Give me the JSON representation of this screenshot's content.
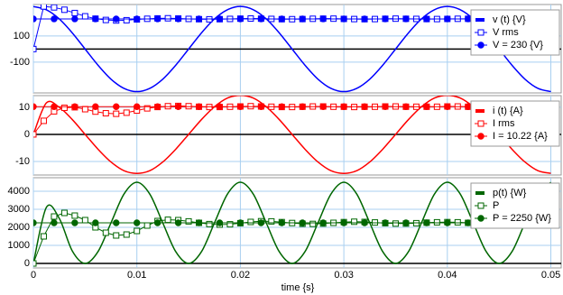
{
  "chart_data": [
    {
      "type": "line",
      "legend": "upper right",
      "grid": true,
      "ylim": [
        -335,
        340
      ],
      "yticks": [
        -100,
        100
      ],
      "series": [
        {
          "name": "v (t) {V}",
          "color": "#0000ff",
          "x": [
            0,
            0.00125,
            0.0025,
            0.00375,
            0.005,
            0.00625,
            0.0075,
            0.00875,
            0.01,
            0.01125,
            0.0125,
            0.01375,
            0.015,
            0.01625,
            0.0175,
            0.01875,
            0.02,
            0.02125,
            0.0225,
            0.02375,
            0.025,
            0.02625,
            0.0275,
            0.02875,
            0.03,
            0.03125,
            0.0325,
            0.03375,
            0.035,
            0.03625,
            0.0375,
            0.03875,
            0.04,
            0.04125,
            0.0425,
            0.04375,
            0.045,
            0.04625,
            0.0475,
            0.04875,
            0.05
          ],
          "values": [
            325,
            300,
            230,
            124,
            0,
            -124,
            -230,
            -300,
            -325,
            -300,
            -230,
            -124,
            0,
            124,
            230,
            300,
            325,
            300,
            230,
            124,
            0,
            -124,
            -230,
            -300,
            -325,
            -300,
            -230,
            -124,
            0,
            124,
            230,
            300,
            325,
            300,
            230,
            124,
            0,
            -124,
            -230,
            -300,
            -325
          ]
        },
        {
          "name": "V rms",
          "color": "#0000ff",
          "marker": "open-square",
          "x": [
            0,
            0.001,
            0.002,
            0.003,
            0.004,
            0.005,
            0.006,
            0.007,
            0.008,
            0.009,
            0.01,
            0.011,
            0.012,
            0.013,
            0.014,
            0.015,
            0.016,
            0.017,
            0.018,
            0.019,
            0.02,
            0.021,
            0.022,
            0.023,
            0.024,
            0.025,
            0.026,
            0.027,
            0.028,
            0.029,
            0.03,
            0.031,
            0.032,
            0.033,
            0.034,
            0.035,
            0.036,
            0.037,
            0.038,
            0.039,
            0.04,
            0.041,
            0.042,
            0.043,
            0.044,
            0.045,
            0.046,
            0.047,
            0.048,
            0.049,
            0.05
          ],
          "values": [
            0,
            325,
            318,
            300,
            275,
            250,
            232,
            222,
            218,
            220,
            226,
            231,
            234,
            235,
            233,
            230,
            228,
            227,
            228,
            230,
            232,
            233,
            232,
            230,
            228,
            228,
            229,
            231,
            232,
            232,
            230,
            229,
            228,
            229,
            231,
            232,
            231,
            230,
            229,
            229,
            230,
            231,
            231,
            230,
            229,
            229,
            230,
            231,
            231,
            230,
            230
          ]
        },
        {
          "name": "V = 230 {V}",
          "color": "#0000ff",
          "marker": "filled-circle",
          "x": [
            0,
            0.002,
            0.004,
            0.006,
            0.008,
            0.01,
            0.012,
            0.014,
            0.016,
            0.018,
            0.02,
            0.022,
            0.024,
            0.026,
            0.028,
            0.03,
            0.032,
            0.034,
            0.036,
            0.038,
            0.04,
            0.042,
            0.044,
            0.046,
            0.048,
            0.05
          ],
          "values": [
            230,
            230,
            230,
            230,
            230,
            230,
            230,
            230,
            230,
            230,
            230,
            230,
            230,
            230,
            230,
            230,
            230,
            230,
            230,
            230,
            230,
            230,
            230,
            230,
            230,
            230
          ]
        }
      ]
    },
    {
      "type": "line",
      "legend": "upper right",
      "grid": true,
      "ylim": [
        -15,
        14.3
      ],
      "yticks": [
        -10,
        0,
        10
      ],
      "series": [
        {
          "name": "i (t) {A}",
          "color": "#ff0000",
          "x": [
            0,
            0.00125,
            0.0025,
            0.00375,
            0.005,
            0.00625,
            0.0075,
            0.00875,
            0.01,
            0.01125,
            0.0125,
            0.01375,
            0.015,
            0.01625,
            0.0175,
            0.01875,
            0.02,
            0.02125,
            0.0225,
            0.02375,
            0.025,
            0.02625,
            0.0275,
            0.02875,
            0.03,
            0.03125,
            0.0325,
            0.03375,
            0.035,
            0.03625,
            0.0375,
            0.03875,
            0.04,
            0.04125,
            0.0425,
            0.04375,
            0.045,
            0.04625,
            0.0475,
            0.04875,
            0.05
          ],
          "values": [
            0,
            11.6,
            10.0,
            5.5,
            0,
            -5.5,
            -10.2,
            -13.4,
            -14.4,
            -13.4,
            -10.2,
            -5.5,
            0,
            5.5,
            10.2,
            13.4,
            14.4,
            13.4,
            10.2,
            5.5,
            0,
            -5.5,
            -10.2,
            -13.4,
            -14.4,
            -13.4,
            -10.2,
            -5.5,
            0,
            5.5,
            10.2,
            13.4,
            14.4,
            13.4,
            10.2,
            5.5,
            0,
            -5.5,
            -10.2,
            -13.4,
            -14.4
          ]
        },
        {
          "name": "I rms",
          "color": "#ff0000",
          "marker": "open-square",
          "x": [
            0,
            0.001,
            0.002,
            0.003,
            0.004,
            0.005,
            0.006,
            0.007,
            0.008,
            0.009,
            0.01,
            0.011,
            0.012,
            0.013,
            0.014,
            0.015,
            0.016,
            0.017,
            0.018,
            0.019,
            0.02,
            0.021,
            0.022,
            0.023,
            0.024,
            0.025,
            0.026,
            0.027,
            0.028,
            0.029,
            0.03,
            0.031,
            0.032,
            0.033,
            0.034,
            0.035,
            0.036,
            0.037,
            0.038,
            0.039,
            0.04,
            0.041,
            0.042,
            0.043,
            0.044,
            0.045,
            0.046,
            0.047,
            0.048,
            0.049,
            0.05
          ],
          "values": [
            0,
            5.0,
            8.5,
            9.8,
            10.0,
            9.3,
            8.4,
            7.8,
            7.6,
            8.0,
            8.8,
            9.6,
            10.1,
            10.4,
            10.5,
            10.4,
            10.2,
            10.1,
            10.1,
            10.2,
            10.3,
            10.4,
            10.3,
            10.2,
            10.1,
            10.1,
            10.2,
            10.3,
            10.3,
            10.2,
            10.2,
            10.1,
            10.2,
            10.2,
            10.3,
            10.3,
            10.2,
            10.2,
            10.2,
            10.2,
            10.3,
            10.3,
            10.2,
            10.2,
            10.2,
            10.2,
            10.2,
            10.3,
            10.2,
            10.2,
            10.2
          ]
        },
        {
          "name": "I = 10.22 {A}",
          "color": "#ff0000",
          "marker": "filled-circle",
          "x": [
            0,
            0.002,
            0.004,
            0.006,
            0.008,
            0.01,
            0.012,
            0.014,
            0.016,
            0.018,
            0.02,
            0.022,
            0.024,
            0.026,
            0.028,
            0.03,
            0.032,
            0.034,
            0.036,
            0.038,
            0.04,
            0.042,
            0.044,
            0.046,
            0.048,
            0.05
          ],
          "values": [
            10.22,
            10.22,
            10.22,
            10.22,
            10.22,
            10.22,
            10.22,
            10.22,
            10.22,
            10.22,
            10.22,
            10.22,
            10.22,
            10.22,
            10.22,
            10.22,
            10.22,
            10.22,
            10.22,
            10.22,
            10.22,
            10.22,
            10.22,
            10.22,
            10.22,
            10.22
          ]
        }
      ]
    },
    {
      "type": "line",
      "legend": "upper right",
      "grid": true,
      "xlabel": "time {s}",
      "xlim": [
        0,
        0.051
      ],
      "xticks": [
        0,
        0.01,
        0.02,
        0.03,
        0.04,
        0.05
      ],
      "ylim": [
        -250,
        4750
      ],
      "yticks": [
        0,
        1000,
        2000,
        3000,
        4000
      ],
      "series": [
        {
          "name": "p(t) {W}",
          "color": "#006600",
          "x": [
            0,
            0.00125,
            0.0025,
            0.00375,
            0.005,
            0.00625,
            0.0075,
            0.00875,
            0.01,
            0.01125,
            0.0125,
            0.01375,
            0.015,
            0.01625,
            0.0175,
            0.01875,
            0.02,
            0.02125,
            0.0225,
            0.02375,
            0.025,
            0.02625,
            0.0275,
            0.02875,
            0.03,
            0.03125,
            0.0325,
            0.03375,
            0.035,
            0.03625,
            0.0375,
            0.03875,
            0.04,
            0.04125,
            0.0425,
            0.04375,
            0.045,
            0.04625,
            0.0475,
            0.04875,
            0.05
          ],
          "values": [
            0,
            3100,
            2500,
            700,
            0,
            659,
            2250,
            3841,
            4500,
            3841,
            2250,
            659,
            0,
            659,
            2250,
            3841,
            4500,
            3841,
            2250,
            659,
            0,
            659,
            2250,
            3841,
            4500,
            3841,
            2250,
            659,
            0,
            659,
            2250,
            3841,
            4500,
            3841,
            2250,
            659,
            0,
            659,
            2250,
            3841,
            4500
          ]
        },
        {
          "name": "P",
          "color": "#006600",
          "marker": "open-square",
          "x": [
            0,
            0.001,
            0.002,
            0.003,
            0.004,
            0.005,
            0.006,
            0.007,
            0.008,
            0.009,
            0.01,
            0.011,
            0.012,
            0.013,
            0.014,
            0.015,
            0.016,
            0.017,
            0.018,
            0.019,
            0.02,
            0.021,
            0.022,
            0.023,
            0.024,
            0.025,
            0.026,
            0.027,
            0.028,
            0.029,
            0.03,
            0.031,
            0.032,
            0.033,
            0.034,
            0.035,
            0.036,
            0.037,
            0.038,
            0.039,
            0.04,
            0.041,
            0.042,
            0.043,
            0.044,
            0.045,
            0.046,
            0.047,
            0.048,
            0.049,
            0.05
          ],
          "values": [
            0,
            1500,
            2600,
            2800,
            2650,
            2400,
            2000,
            1700,
            1550,
            1600,
            1800,
            2100,
            2350,
            2420,
            2400,
            2330,
            2250,
            2180,
            2150,
            2170,
            2230,
            2300,
            2340,
            2330,
            2290,
            2240,
            2200,
            2190,
            2210,
            2250,
            2290,
            2310,
            2300,
            2270,
            2230,
            2210,
            2210,
            2230,
            2260,
            2280,
            2290,
            2280,
            2250,
            2230,
            2220,
            2230,
            2250,
            2270,
            2280,
            2270,
            2250
          ]
        },
        {
          "name": "P = 2250 {W}",
          "color": "#006600",
          "marker": "filled-circle",
          "x": [
            0,
            0.002,
            0.004,
            0.006,
            0.008,
            0.01,
            0.012,
            0.014,
            0.016,
            0.018,
            0.02,
            0.022,
            0.024,
            0.026,
            0.028,
            0.03,
            0.032,
            0.034,
            0.036,
            0.038,
            0.04,
            0.042,
            0.044,
            0.046,
            0.048,
            0.05
          ],
          "values": [
            2250,
            2250,
            2250,
            2250,
            2250,
            2250,
            2250,
            2250,
            2250,
            2250,
            2250,
            2250,
            2250,
            2250,
            2250,
            2250,
            2250,
            2250,
            2250,
            2250,
            2250,
            2250,
            2250,
            2250,
            2250,
            2250
          ]
        }
      ]
    }
  ]
}
